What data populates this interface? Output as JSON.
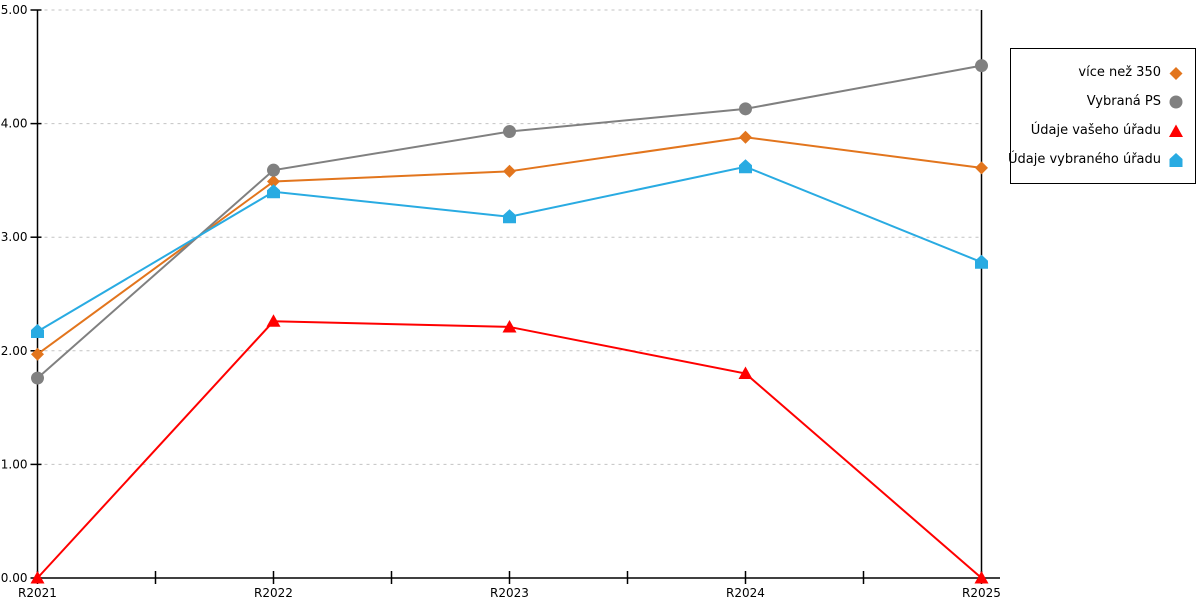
{
  "chart_data": {
    "type": "line",
    "title": "",
    "xlabel": "",
    "ylabel": "",
    "x_categories": [
      "R2021",
      "R2022",
      "R2023",
      "R2024",
      "R2025"
    ],
    "series": [
      {
        "name": "více než 350",
        "marker": "diamond",
        "color": "#E2751D",
        "values": [
          1.97,
          3.49,
          3.58,
          3.88,
          3.61
        ]
      },
      {
        "name": "Vybraná PS",
        "marker": "circle",
        "color": "#808080",
        "values": [
          1.76,
          3.59,
          3.93,
          4.13,
          4.51
        ]
      },
      {
        "name": "Údaje vašeho úřadu",
        "marker": "triangle-up",
        "color": "#FF0000",
        "values": [
          0.0,
          2.26,
          2.21,
          1.8,
          0.0
        ]
      },
      {
        "name": "Údaje vybraného úřadu",
        "marker": "pentagon-up",
        "color": "#29ABE2",
        "values": [
          2.17,
          3.4,
          3.18,
          3.62,
          2.78
        ]
      }
    ],
    "y_axis": {
      "min": 0,
      "max": 5,
      "tick_step": 1,
      "tick_labels": [
        "0.00",
        "1.00",
        "2.00",
        "3.00",
        "4.00",
        "5.00"
      ]
    },
    "grid": "horizontal-dotted",
    "legend_position": "right-outside"
  },
  "colors": {
    "background": "#FFFFFF",
    "axis": "#000000",
    "grid": "#C3C3C3",
    "legend_border": "#000000"
  }
}
